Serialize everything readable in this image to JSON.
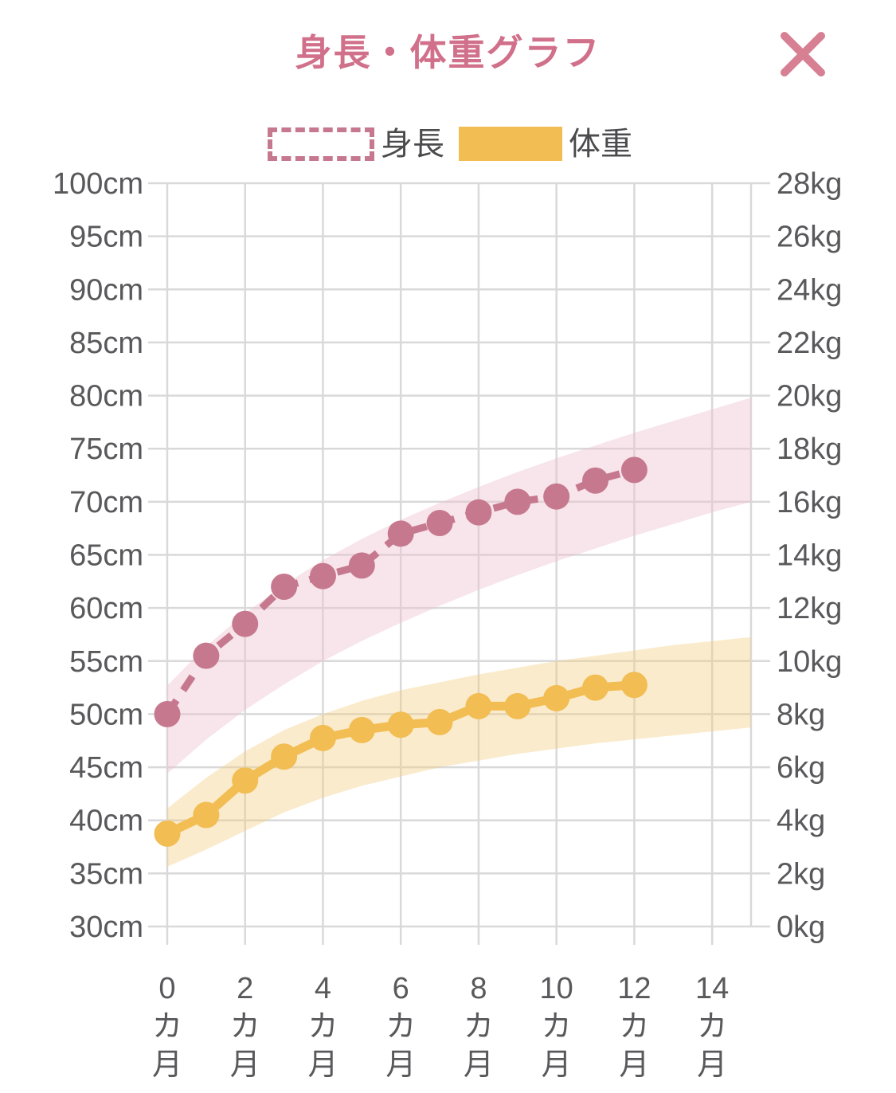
{
  "header": {
    "title": "身長・体重グラフ"
  },
  "legend": {
    "height_label": "身長",
    "weight_label": "体重"
  },
  "colors": {
    "title_pink": "#d1708a",
    "close_pink": "#d77f93",
    "height_line": "#c6798e",
    "height_band": "#ecc0d0",
    "weight_line": "#f2bd52",
    "weight_band": "#f3cd80",
    "axis_text": "#59595c",
    "grid": "#d9d9d9",
    "background": "#ffffff"
  },
  "chart_data": {
    "type": "line",
    "title": "身長・体重グラフ",
    "grid": true,
    "legend_position": "top",
    "x_axis": {
      "min": 0,
      "max": 15,
      "label_months": [
        0,
        2,
        4,
        6,
        8,
        10,
        12,
        14
      ],
      "unit_chars": [
        "カ",
        "月"
      ],
      "tick_labels": [
        "0カ月",
        "2カ月",
        "4カ月",
        "6カ月",
        "8カ月",
        "10カ月",
        "12カ月",
        "14カ月"
      ]
    },
    "left_axis": {
      "unit": "cm",
      "min": 30,
      "max": 100,
      "step": 5,
      "tick_labels": [
        "100cm",
        "95cm",
        "90cm",
        "85cm",
        "80cm",
        "75cm",
        "70cm",
        "65cm",
        "60cm",
        "55cm",
        "50cm",
        "45cm",
        "40cm",
        "35cm",
        "30cm"
      ]
    },
    "right_axis": {
      "unit": "kg",
      "min": 0,
      "max": 28,
      "step": 2,
      "tick_labels": [
        "28kg",
        "26kg",
        "24kg",
        "22kg",
        "20kg",
        "18kg",
        "16kg",
        "14kg",
        "12kg",
        "10kg",
        "8kg",
        "6kg",
        "4kg",
        "2kg",
        "0kg"
      ]
    },
    "series": [
      {
        "name": "身長",
        "unit": "cm",
        "axis": "left",
        "style": "dashed",
        "color": "#c6798e",
        "months": [
          0,
          1,
          2,
          3,
          4,
          5,
          6,
          7,
          8,
          9,
          10,
          11,
          12
        ],
        "values": [
          50,
          55.5,
          58.5,
          62,
          63,
          64,
          67,
          68,
          69,
          70,
          70.5,
          72,
          73
        ]
      },
      {
        "name": "体重",
        "unit": "kg",
        "axis": "right",
        "style": "solid",
        "color": "#f2bd52",
        "months": [
          0,
          1,
          2,
          3,
          4,
          5,
          6,
          7,
          8,
          9,
          10,
          11,
          12
        ],
        "values": [
          3.5,
          4.2,
          5.5,
          6.4,
          7.1,
          7.4,
          7.6,
          7.7,
          8.3,
          8.3,
          8.6,
          9.0,
          9.1
        ]
      }
    ],
    "bands": [
      {
        "name": "身長標準範囲",
        "axis": "left",
        "unit": "cm",
        "color": "#ecc0d0",
        "opacity": 0.42,
        "months": [
          0,
          1,
          2,
          3,
          4,
          5,
          6,
          7,
          8,
          9,
          10,
          11,
          12,
          13,
          14,
          15
        ],
        "upper": [
          52.7,
          56.4,
          59.5,
          62.2,
          64.5,
          66.5,
          68.3,
          69.9,
          71.4,
          72.8,
          74.1,
          75.3,
          76.5,
          77.6,
          78.7,
          79.8
        ],
        "lower": [
          44.4,
          47.6,
          50.4,
          52.8,
          55.0,
          56.9,
          58.6,
          60.2,
          61.7,
          63.1,
          64.4,
          65.6,
          66.8,
          67.9,
          69.0,
          70.0
        ]
      },
      {
        "name": "体重標準範囲",
        "axis": "right",
        "unit": "kg",
        "color": "#f3cd80",
        "opacity": 0.4,
        "months": [
          0,
          1,
          2,
          3,
          4,
          5,
          6,
          7,
          8,
          9,
          10,
          11,
          12,
          13,
          14,
          15
        ],
        "upper": [
          4.45,
          5.6,
          6.6,
          7.4,
          8.0,
          8.5,
          8.9,
          9.2,
          9.5,
          9.75,
          10.0,
          10.2,
          10.4,
          10.6,
          10.75,
          10.9
        ],
        "lower": [
          2.25,
          2.9,
          3.6,
          4.3,
          4.85,
          5.3,
          5.65,
          6.0,
          6.25,
          6.5,
          6.7,
          6.9,
          7.05,
          7.2,
          7.35,
          7.5
        ]
      }
    ]
  }
}
